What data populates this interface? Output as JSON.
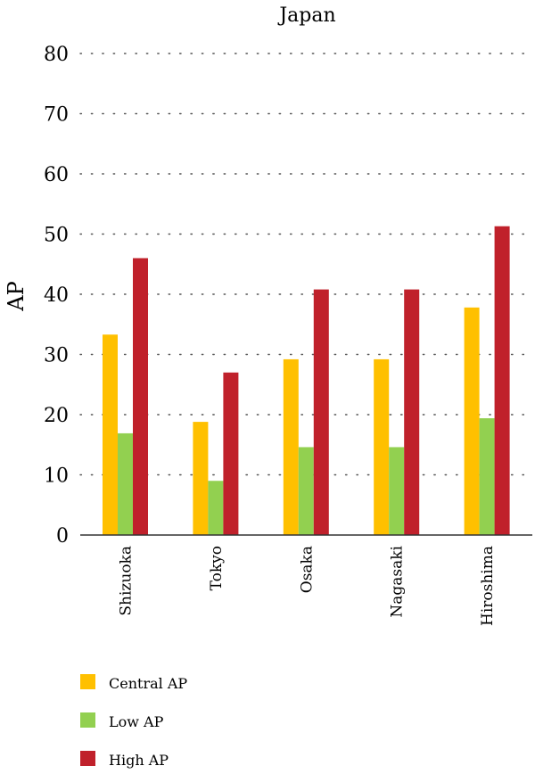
{
  "chart_data": {
    "type": "bar",
    "title": "Japan",
    "xlabel": "",
    "ylabel": "AP",
    "ylim": [
      0,
      80
    ],
    "yticks": [
      0,
      10,
      20,
      30,
      40,
      50,
      60,
      70,
      80
    ],
    "categories": [
      "Shizuoka",
      "Tokyo",
      "Osaka",
      "Nagasaki",
      "Hiroshima"
    ],
    "series": [
      {
        "name": "Central AP",
        "color": "#FFC000",
        "values": [
          33.3,
          18.8,
          29.2,
          29.2,
          37.8
        ]
      },
      {
        "name": "Low AP",
        "color": "#92D050",
        "values": [
          16.9,
          9.0,
          14.6,
          14.6,
          19.4
        ]
      },
      {
        "name": "High AP",
        "color": "#C0212B",
        "values": [
          46.0,
          27.0,
          40.8,
          40.8,
          51.3
        ]
      }
    ],
    "grid": true,
    "legend_position": "bottom-left"
  }
}
